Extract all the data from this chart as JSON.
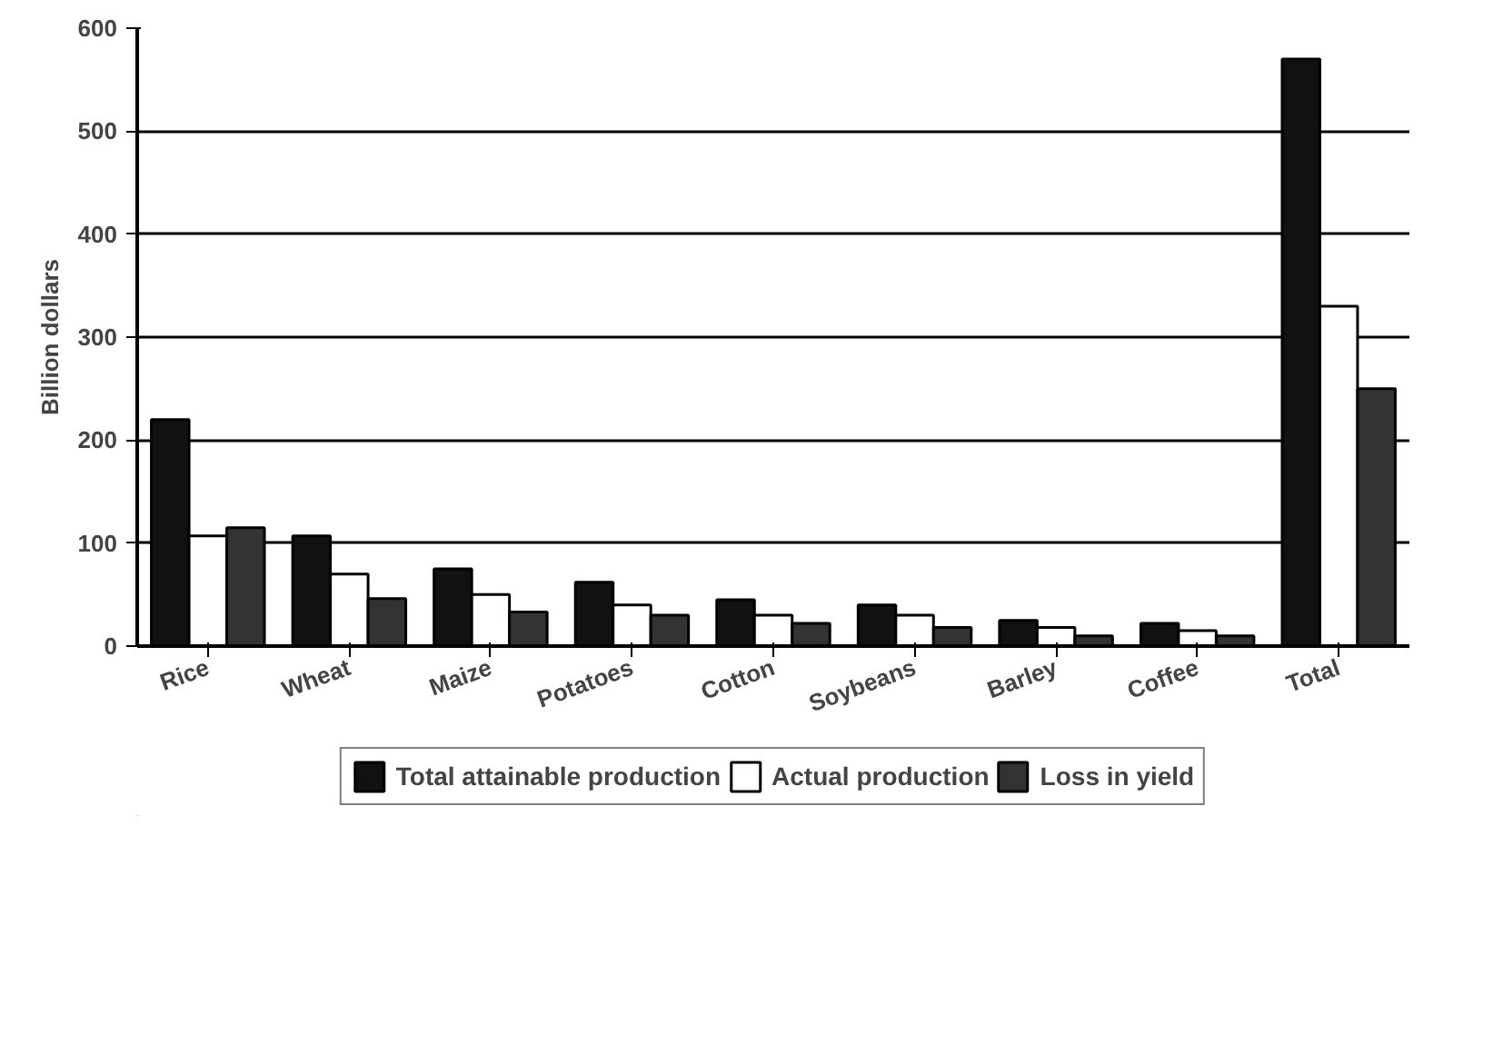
{
  "chart_data": {
    "type": "bar",
    "ylabel": "Billion dollars",
    "categories": [
      "Rice",
      "Wheat",
      "Maize",
      "Potatoes",
      "Cotton",
      "Soybeans",
      "Barley",
      "Coffee",
      "Total"
    ],
    "series": [
      {
        "name": "Total attainable production",
        "color": "#111111",
        "values": [
          220,
          107,
          75,
          62,
          45,
          40,
          25,
          22,
          570
        ]
      },
      {
        "name": "Actual production",
        "color": "#ffffff",
        "values": [
          107,
          70,
          50,
          40,
          30,
          30,
          18,
          15,
          330
        ]
      },
      {
        "name": "Loss in yield",
        "color": "#333333",
        "values": [
          115,
          46,
          33,
          30,
          22,
          18,
          10,
          10,
          250
        ]
      }
    ],
    "ylim": [
      0,
      600
    ],
    "yticks": [
      0,
      100,
      200,
      300,
      400,
      500,
      600
    ],
    "grid": "y",
    "legend": "bottom"
  }
}
